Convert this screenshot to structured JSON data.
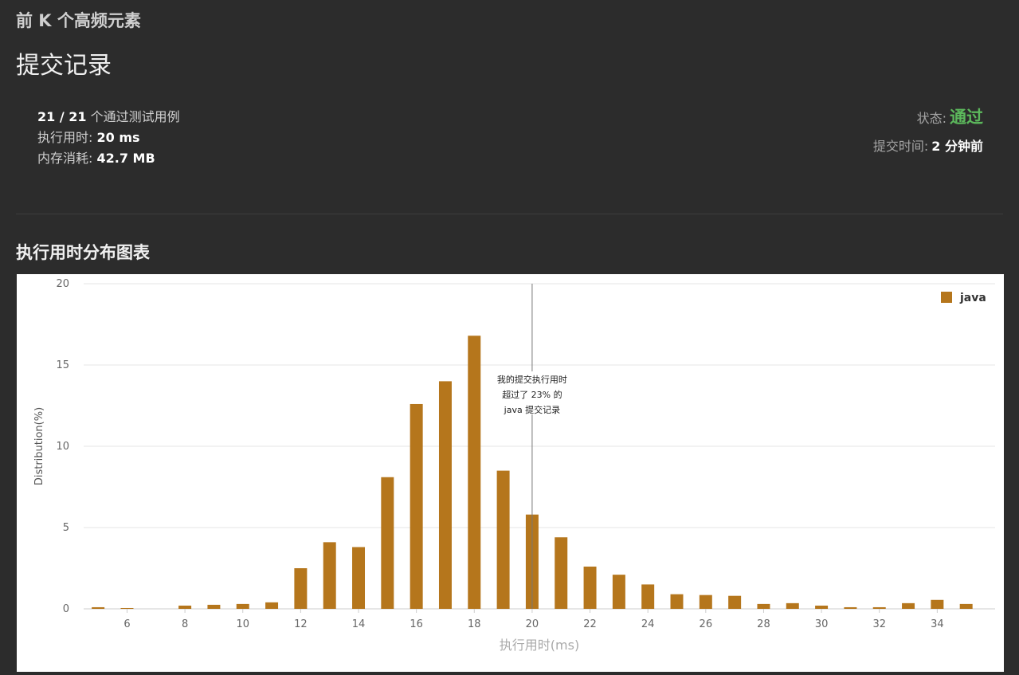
{
  "problem": {
    "title": "前 K 个高频元素"
  },
  "page": {
    "title": "提交记录"
  },
  "result": {
    "passed": "21 / 21",
    "passed_suffix": " 个通过测试用例",
    "runtime_label": "执行用时: ",
    "runtime_value": "20 ms",
    "memory_label": "内存消耗: ",
    "memory_value": "42.7 MB",
    "status_label": "状态:",
    "status_value": "通过",
    "submit_time_label": "提交时间:",
    "submit_time_value": "2 分钟前"
  },
  "colors": {
    "accepted": "#5cb85c",
    "bar": "#b5761c",
    "background": "#2c2c2c"
  },
  "section": {
    "distribution_title": "执行用时分布图表"
  },
  "chart_data": {
    "type": "bar",
    "ylabel": "Distribution(%)",
    "xlabel": "执行用时(ms)",
    "ylim": [
      0,
      20
    ],
    "yticks": [
      0,
      5,
      10,
      15,
      20
    ],
    "xlim": [
      4.5,
      36
    ],
    "xticks": [
      6,
      8,
      10,
      12,
      14,
      16,
      18,
      20,
      22,
      24,
      26,
      28,
      30,
      32,
      34
    ],
    "grid": true,
    "legend_position": "top-right",
    "series": [
      {
        "name": "java",
        "x": [
          5,
          6,
          8,
          9,
          10,
          11,
          12,
          13,
          14,
          15,
          16,
          17,
          18,
          19,
          20,
          21,
          22,
          23,
          24,
          25,
          26,
          27,
          28,
          29,
          30,
          31,
          32,
          33,
          34,
          35
        ],
        "values": [
          0.1,
          0.05,
          0.2,
          0.25,
          0.3,
          0.4,
          2.5,
          4.1,
          3.8,
          8.1,
          12.6,
          14.0,
          16.8,
          8.5,
          5.8,
          4.4,
          2.6,
          2.1,
          1.5,
          0.9,
          0.85,
          0.8,
          0.3,
          0.35,
          0.2,
          0.1,
          0.1,
          0.35,
          0.55,
          0.3
        ]
      }
    ],
    "marker": {
      "x": 20,
      "lines": [
        "我的提交执行用时",
        "超过了 23% 的",
        "java 提交记录"
      ]
    }
  }
}
